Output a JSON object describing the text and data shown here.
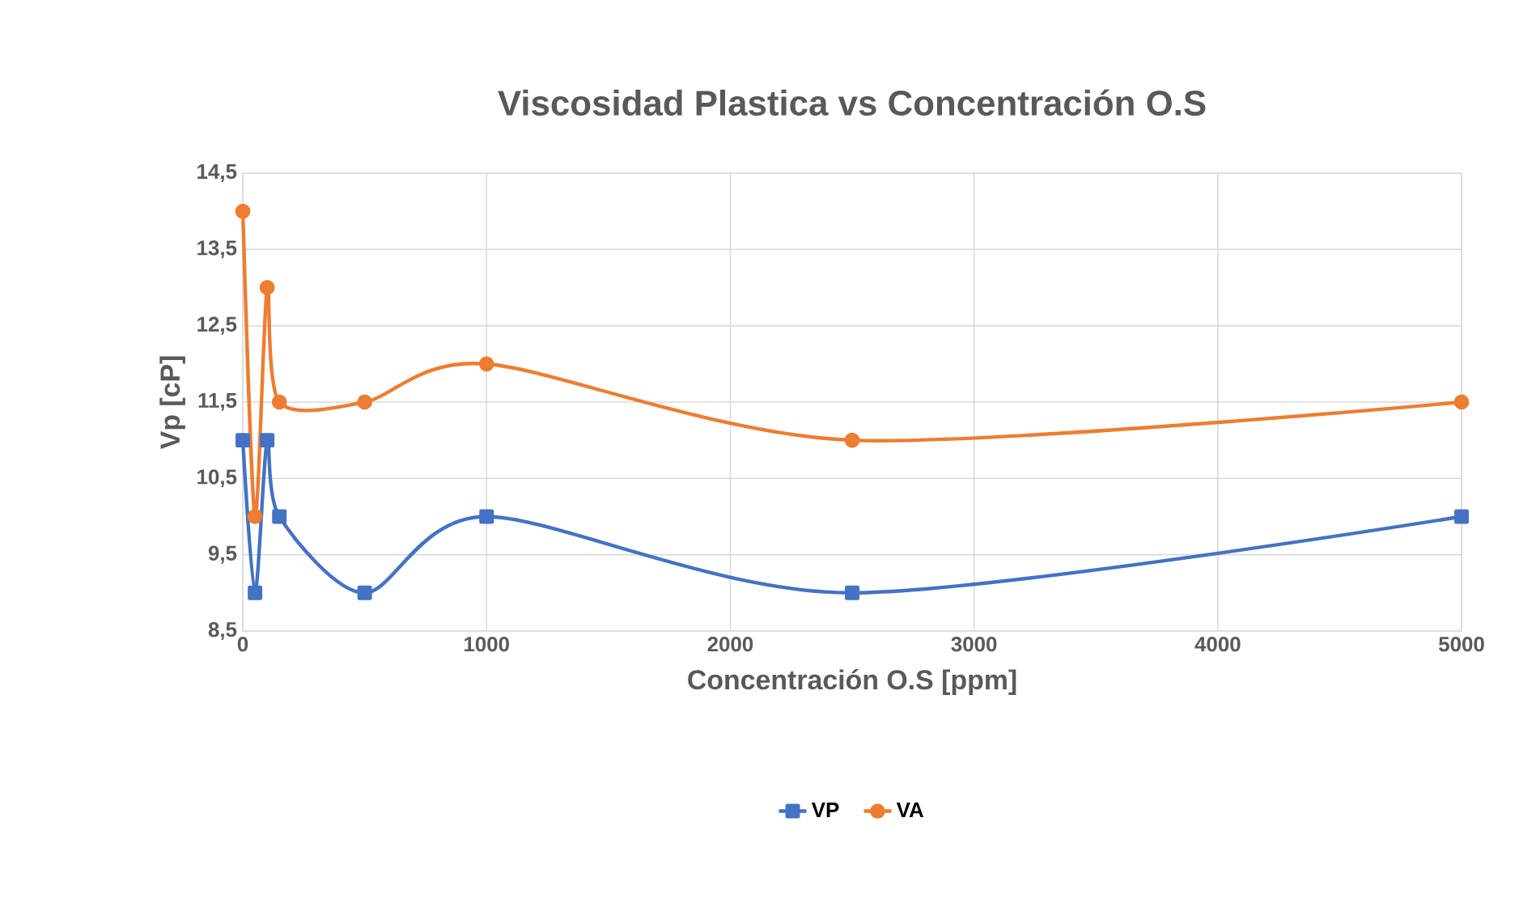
{
  "chart_data": {
    "type": "line",
    "title": "Viscosidad Plastica vs Concentración O.S",
    "xlabel": "Concentración O.S [ppm]",
    "ylabel": "Vp [cP]",
    "x": [
      0,
      50,
      100,
      150,
      500,
      1000,
      2500,
      5000
    ],
    "series": [
      {
        "name": "VP",
        "color": "#4472c4",
        "marker": "square",
        "values": [
          11,
          9,
          11,
          10,
          9,
          10,
          9,
          10
        ]
      },
      {
        "name": "VA",
        "color": "#ed7d31",
        "marker": "circle",
        "values": [
          14,
          10,
          13,
          11.5,
          11.5,
          12,
          11,
          11.5
        ]
      }
    ],
    "xlim": [
      0,
      5000
    ],
    "xticks": [
      0,
      1000,
      2000,
      3000,
      4000,
      5000
    ],
    "ylim": [
      8.5,
      14.5
    ],
    "yticks": [
      {
        "value": 8.5,
        "label": "8,5"
      },
      {
        "value": 9.5,
        "label": "9,5"
      },
      {
        "value": 10.5,
        "label": "10,5"
      },
      {
        "value": 11.5,
        "label": "11,5"
      },
      {
        "value": 12.5,
        "label": "12,5"
      },
      {
        "value": 13.5,
        "label": "13,5"
      },
      {
        "value": 14.5,
        "label": "14,5"
      }
    ],
    "grid": true,
    "legend": "bottom",
    "line_style": "solid"
  }
}
